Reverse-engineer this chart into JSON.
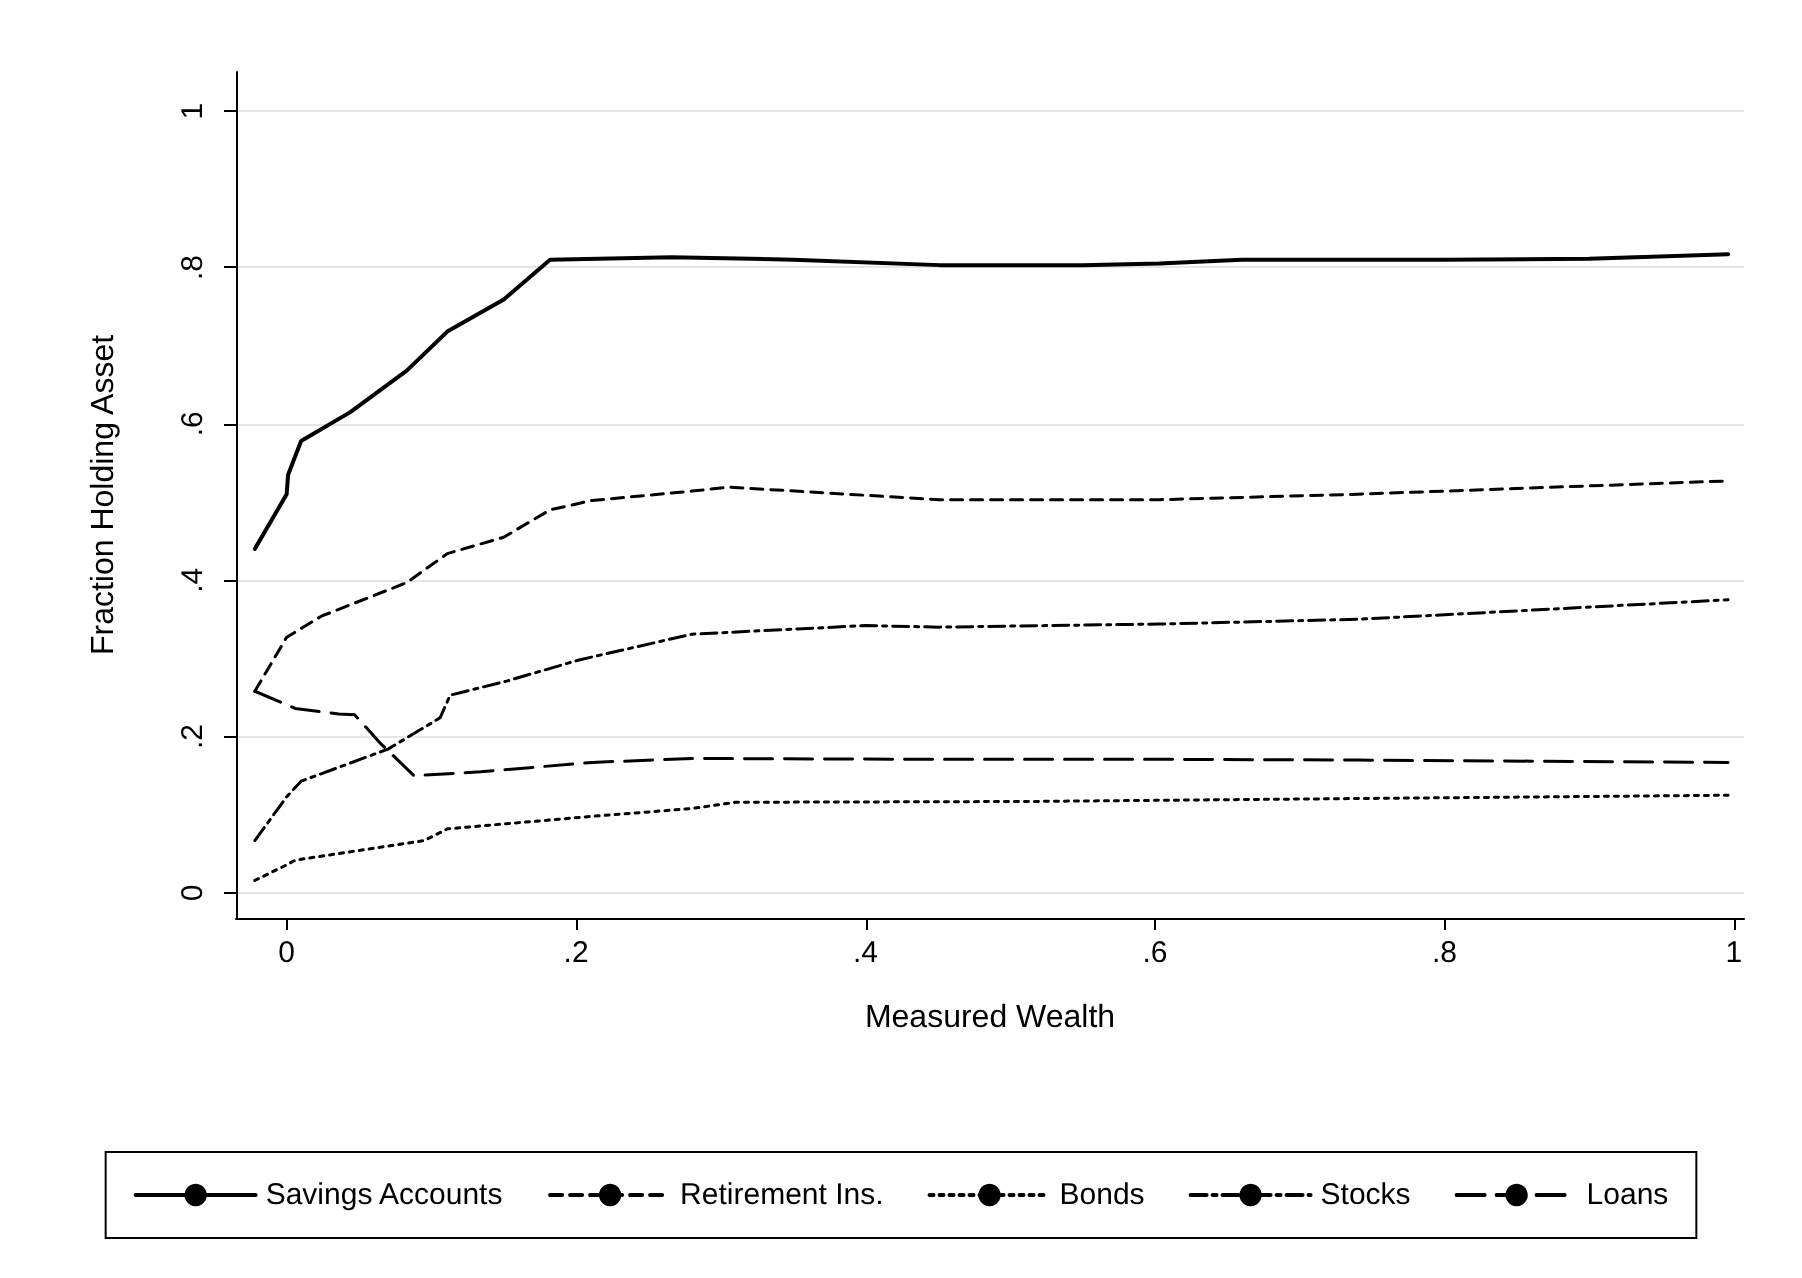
{
  "chart_data": {
    "type": "line",
    "xlabel": "Measured Wealth",
    "ylabel": "Fraction Holding Asset",
    "xlim": [
      -0.035,
      1.007
    ],
    "ylim": [
      -0.032,
      1.05
    ],
    "xticks": [
      0,
      {
        "value": 0.2,
        "label": ".2"
      },
      {
        "value": 0.4,
        "label": ".4"
      },
      {
        "value": 0.6,
        "label": ".6"
      },
      {
        "value": 0.8,
        "label": ".8"
      },
      1
    ],
    "yticks": [
      0,
      {
        "value": 0.2,
        "label": ".2"
      },
      {
        "value": 0.4,
        "label": ".4"
      },
      {
        "value": 0.6,
        "label": ".6"
      },
      {
        "value": 0.8,
        "label": ".8"
      },
      1
    ],
    "grid": "y",
    "legend": "bottom",
    "marker": "none",
    "series": [
      {
        "name": "Savings Accounts",
        "color": "#000000",
        "line_style": "solid",
        "x": [
          -0.022,
          0,
          0.001,
          0.01,
          0.044,
          0.083,
          0.111,
          0.15,
          0.182,
          0.266,
          0.35,
          0.451,
          0.55,
          0.603,
          0.66,
          0.8,
          0.9,
          0.996
        ],
        "values": [
          0.44,
          0.51,
          0.535,
          0.578,
          0.615,
          0.668,
          0.718,
          0.759,
          0.81,
          0.813,
          0.81,
          0.803,
          0.803,
          0.805,
          0.81,
          0.81,
          0.811,
          0.817
        ]
      },
      {
        "name": "Retirement Ins.",
        "color": "#000000",
        "line_style": "dashed",
        "x": [
          -0.022,
          0,
          0.024,
          0.083,
          0.111,
          0.15,
          0.182,
          0.211,
          0.28,
          0.306,
          0.451,
          0.603,
          0.74,
          0.996
        ],
        "values": [
          0.258,
          0.327,
          0.354,
          0.397,
          0.434,
          0.455,
          0.49,
          0.502,
          0.514,
          0.519,
          0.503,
          0.503,
          0.51,
          0.527
        ]
      },
      {
        "name": "Bonds",
        "color": "#000000",
        "line_style": "dotted",
        "x": [
          -0.022,
          0,
          0.006,
          0.095,
          0.111,
          0.211,
          0.28,
          0.31,
          0.51,
          0.996
        ],
        "values": [
          0.016,
          0.036,
          0.042,
          0.067,
          0.082,
          0.098,
          0.108,
          0.116,
          0.117,
          0.125
        ]
      },
      {
        "name": "Stocks",
        "color": "#000000",
        "line_style": "dashdot",
        "x": [
          -0.022,
          0,
          0.01,
          0.07,
          0.106,
          0.113,
          0.152,
          0.202,
          0.28,
          0.4,
          0.451,
          0.603,
          0.74,
          0.996
        ],
        "values": [
          0.067,
          0.123,
          0.143,
          0.184,
          0.224,
          0.253,
          0.271,
          0.298,
          0.331,
          0.342,
          0.34,
          0.344,
          0.35,
          0.375
        ]
      },
      {
        "name": "Loans",
        "color": "#000000",
        "line_style": "longdash",
        "x": [
          -0.022,
          0.006,
          0.036,
          0.047,
          0.065,
          0.088,
          0.134,
          0.211,
          0.28,
          0.451,
          0.603,
          0.74,
          0.996
        ],
        "values": [
          0.258,
          0.236,
          0.229,
          0.228,
          0.191,
          0.15,
          0.155,
          0.167,
          0.172,
          0.171,
          0.171,
          0.17,
          0.167
        ]
      }
    ]
  }
}
